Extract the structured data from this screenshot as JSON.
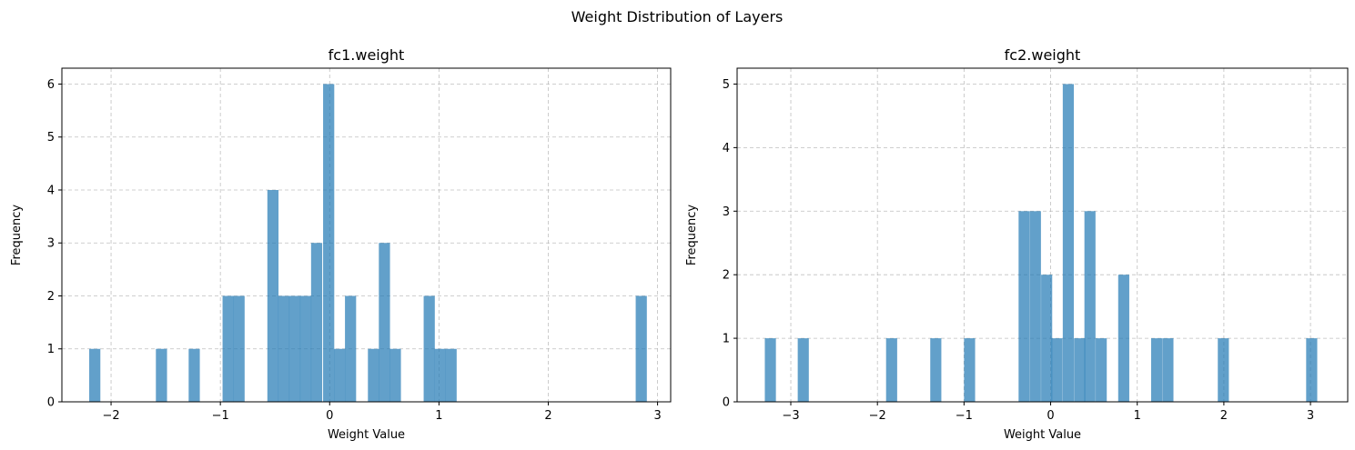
{
  "figure": {
    "suptitle": "Weight Distribution of Layers"
  },
  "chart_data": [
    {
      "type": "bar",
      "title": "fc1.weight",
      "xlabel": "Weight Value",
      "ylabel": "Frequency",
      "xlim": [
        -2.45,
        3.12
      ],
      "ylim": [
        0,
        6.3
      ],
      "bin_width": 0.102,
      "grid": true,
      "xticks": [
        -2,
        -1,
        0,
        1,
        2,
        3
      ],
      "xtick_labels": [
        "−2",
        "−1",
        "0",
        "1",
        "2",
        "3"
      ],
      "yticks": [
        0,
        1,
        2,
        3,
        4,
        5,
        6
      ],
      "ytick_labels": [
        "0",
        "1",
        "2",
        "3",
        "4",
        "5",
        "6"
      ],
      "bins": [
        {
          "x": -2.2,
          "count": 1
        },
        {
          "x": -1.59,
          "count": 1
        },
        {
          "x": -1.29,
          "count": 1
        },
        {
          "x": -0.98,
          "count": 2
        },
        {
          "x": -0.88,
          "count": 2
        },
        {
          "x": -0.57,
          "count": 4
        },
        {
          "x": -0.47,
          "count": 2
        },
        {
          "x": -0.37,
          "count": 2
        },
        {
          "x": -0.27,
          "count": 2
        },
        {
          "x": -0.17,
          "count": 3
        },
        {
          "x": -0.06,
          "count": 6
        },
        {
          "x": 0.04,
          "count": 1
        },
        {
          "x": 0.14,
          "count": 2
        },
        {
          "x": 0.35,
          "count": 1
        },
        {
          "x": 0.45,
          "count": 3
        },
        {
          "x": 0.55,
          "count": 1
        },
        {
          "x": 0.86,
          "count": 2
        },
        {
          "x": 0.96,
          "count": 1
        },
        {
          "x": 1.06,
          "count": 1
        },
        {
          "x": 2.8,
          "count": 2
        }
      ]
    },
    {
      "type": "bar",
      "title": "fc2.weight",
      "xlabel": "Weight Value",
      "ylabel": "Frequency",
      "xlim": [
        -3.62,
        3.43
      ],
      "ylim": [
        0,
        5.25
      ],
      "bin_width": 0.128,
      "grid": true,
      "xticks": [
        -3,
        -2,
        -1,
        0,
        1,
        2,
        3
      ],
      "xtick_labels": [
        "−3",
        "−2",
        "−1",
        "0",
        "1",
        "2",
        "3"
      ],
      "yticks": [
        0,
        1,
        2,
        3,
        4,
        5
      ],
      "ytick_labels": [
        "0",
        "1",
        "2",
        "3",
        "4",
        "5"
      ],
      "bins": [
        {
          "x": -3.3,
          "count": 1
        },
        {
          "x": -2.92,
          "count": 1
        },
        {
          "x": -1.9,
          "count": 1
        },
        {
          "x": -1.39,
          "count": 1
        },
        {
          "x": -1.0,
          "count": 1
        },
        {
          "x": -0.37,
          "count": 3
        },
        {
          "x": -0.24,
          "count": 3
        },
        {
          "x": -0.11,
          "count": 2
        },
        {
          "x": 0.01,
          "count": 1
        },
        {
          "x": 0.14,
          "count": 5
        },
        {
          "x": 0.27,
          "count": 1
        },
        {
          "x": 0.39,
          "count": 3
        },
        {
          "x": 0.52,
          "count": 1
        },
        {
          "x": 0.78,
          "count": 2
        },
        {
          "x": 1.16,
          "count": 1
        },
        {
          "x": 1.29,
          "count": 1
        },
        {
          "x": 1.93,
          "count": 1
        },
        {
          "x": 2.95,
          "count": 1
        }
      ]
    }
  ]
}
